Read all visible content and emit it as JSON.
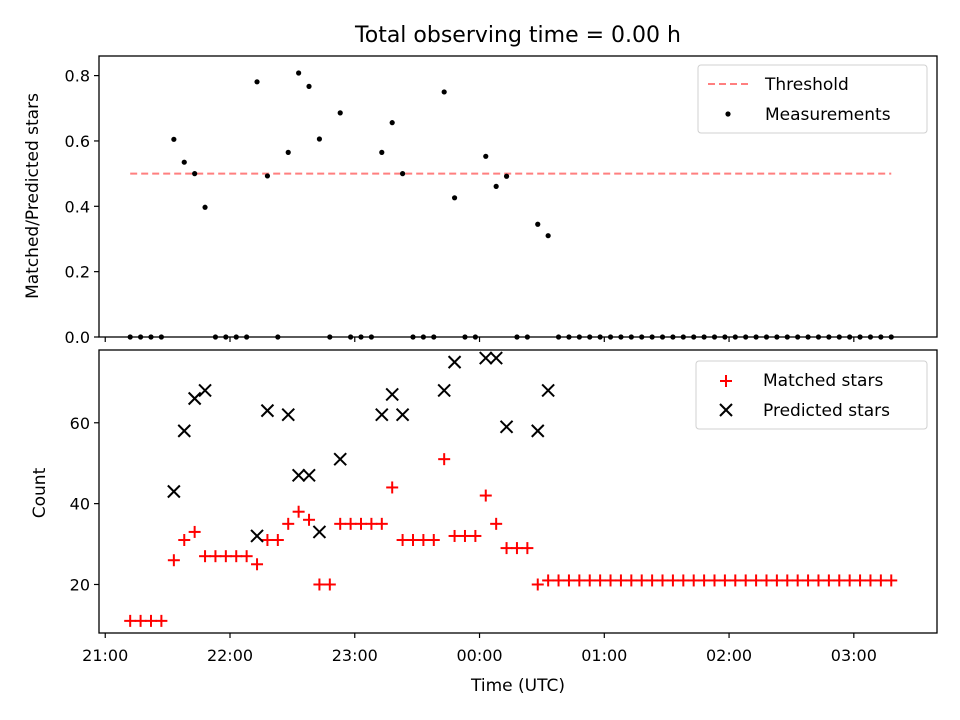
{
  "figure": {
    "title": "Total observing time = 0.00 h"
  },
  "chart_data": [
    {
      "type": "scatter",
      "title": "Total observing time = 0.00 h",
      "ylabel": "Matched/Predicted stars",
      "xlabel": "",
      "ylim": [
        0,
        0.86
      ],
      "yticks": [
        "0.0",
        "0.2",
        "0.4",
        "0.6",
        "0.8"
      ],
      "ytick_values": [
        0,
        0.2,
        0.4,
        0.6,
        0.8
      ],
      "xtick_times": [
        "21:00",
        "22:00",
        "23:00",
        "00:00",
        "01:00",
        "02:00",
        "03:00"
      ],
      "grid": false,
      "legend_position": "top-right",
      "threshold": {
        "name": "Threshold",
        "value": 0.5,
        "color": "#ff7f7f",
        "x_start": "21:12",
        "x_end": "03:18"
      },
      "series": [
        {
          "name": "Measurements",
          "color": "#000000",
          "x": [
            "21:12",
            "21:17",
            "21:22",
            "21:27",
            "21:33",
            "21:38",
            "21:43",
            "21:48",
            "21:53",
            "21:58",
            "22:03",
            "22:08",
            "22:13",
            "22:18",
            "22:23",
            "22:28",
            "22:33",
            "22:38",
            "22:43",
            "22:48",
            "22:53",
            "22:58",
            "23:03",
            "23:08",
            "23:13",
            "23:18",
            "23:23",
            "23:28",
            "23:33",
            "23:38",
            "23:43",
            "23:48",
            "23:53",
            "23:58",
            "00:03",
            "00:08",
            "00:13",
            "00:18",
            "00:23",
            "00:28",
            "00:33",
            "00:38",
            "00:43",
            "00:48",
            "00:53",
            "00:58",
            "01:03",
            "01:08",
            "01:13",
            "01:18",
            "01:23",
            "01:28",
            "01:33",
            "01:38",
            "01:43",
            "01:48",
            "01:53",
            "01:58",
            "02:03",
            "02:08",
            "02:13",
            "02:18",
            "02:23",
            "02:28",
            "02:33",
            "02:38",
            "02:43",
            "02:48",
            "02:53",
            "02:58",
            "03:03",
            "03:08",
            "03:13",
            "03:18"
          ],
          "y": [
            0,
            0,
            0,
            0,
            0.605,
            0.535,
            0.5,
            0.397,
            0,
            0,
            0,
            0,
            0.781,
            0.493,
            0,
            0.565,
            0.808,
            0.767,
            0.606,
            0,
            0.686,
            0,
            0,
            0,
            0.565,
            0.656,
            0.5,
            0,
            0,
            0,
            0.75,
            0.426,
            0,
            0,
            0.553,
            0.461,
            0.492,
            0,
            0,
            0.345,
            0.31,
            0,
            0,
            0,
            0,
            0,
            0,
            0,
            0,
            0,
            0,
            0,
            0,
            0,
            0,
            0,
            0,
            0,
            0,
            0,
            0,
            0,
            0,
            0,
            0,
            0,
            0,
            0,
            0,
            0,
            0,
            0,
            0,
            0
          ]
        }
      ]
    },
    {
      "type": "scatter",
      "title": "",
      "ylabel": "Count",
      "xlabel": "Time (UTC)",
      "ylim": [
        8,
        78
      ],
      "yticks": [
        "20",
        "40",
        "60"
      ],
      "ytick_values": [
        20,
        40,
        60
      ],
      "xtick_labels": [
        "21:00",
        "22:00",
        "23:00",
        "00:00",
        "01:00",
        "02:00",
        "03:00"
      ],
      "xlim": [
        "20:57",
        "03:40"
      ],
      "grid": false,
      "legend_position": "top-right",
      "series": [
        {
          "name": "Matched stars",
          "marker": "plus",
          "color": "#ff0000",
          "x": [
            "21:12",
            "21:17",
            "21:22",
            "21:27",
            "21:33",
            "21:38",
            "21:43",
            "21:48",
            "21:53",
            "21:58",
            "22:03",
            "22:08",
            "22:13",
            "22:18",
            "22:23",
            "22:28",
            "22:33",
            "22:38",
            "22:43",
            "22:48",
            "22:53",
            "22:58",
            "23:03",
            "23:08",
            "23:13",
            "23:18",
            "23:23",
            "23:28",
            "23:33",
            "23:38",
            "23:43",
            "23:48",
            "23:53",
            "23:58",
            "00:03",
            "00:08",
            "00:13",
            "00:18",
            "00:23",
            "00:28",
            "00:33",
            "00:38",
            "00:43",
            "00:48",
            "00:53",
            "00:58",
            "01:03",
            "01:08",
            "01:13",
            "01:18",
            "01:23",
            "01:28",
            "01:33",
            "01:38",
            "01:43",
            "01:48",
            "01:53",
            "01:58",
            "02:03",
            "02:08",
            "02:13",
            "02:18",
            "02:23",
            "02:28",
            "02:33",
            "02:38",
            "02:43",
            "02:48",
            "02:53",
            "02:58",
            "03:03",
            "03:08",
            "03:13",
            "03:18"
          ],
          "y": [
            11,
            11,
            11,
            11,
            26,
            31,
            33,
            27,
            27,
            27,
            27,
            27,
            25,
            31,
            31,
            35,
            38,
            36,
            20,
            20,
            35,
            35,
            35,
            35,
            35,
            44,
            31,
            31,
            31,
            31,
            51,
            32,
            32,
            32,
            42,
            35,
            29,
            29,
            29,
            20,
            21,
            21,
            21,
            21,
            21,
            21,
            21,
            21,
            21,
            21,
            21,
            21,
            21,
            21,
            21,
            21,
            21,
            21,
            21,
            21,
            21,
            21,
            21,
            21,
            21,
            21,
            21,
            21,
            21,
            21,
            21,
            21,
            21,
            21
          ]
        },
        {
          "name": "Predicted stars",
          "marker": "x",
          "color": "#000000",
          "x": [
            "21:33",
            "21:38",
            "21:43",
            "21:48",
            "22:13",
            "22:18",
            "22:28",
            "22:33",
            "22:38",
            "22:43",
            "22:53",
            "23:13",
            "23:18",
            "23:23",
            "23:43",
            "23:48",
            "00:03",
            "00:08",
            "00:13",
            "00:28",
            "00:33"
          ],
          "y": [
            43,
            58,
            66,
            68,
            32,
            63,
            62,
            47,
            47,
            33,
            51,
            62,
            67,
            62,
            68,
            75,
            76,
            76,
            59,
            58,
            68
          ]
        }
      ]
    }
  ]
}
